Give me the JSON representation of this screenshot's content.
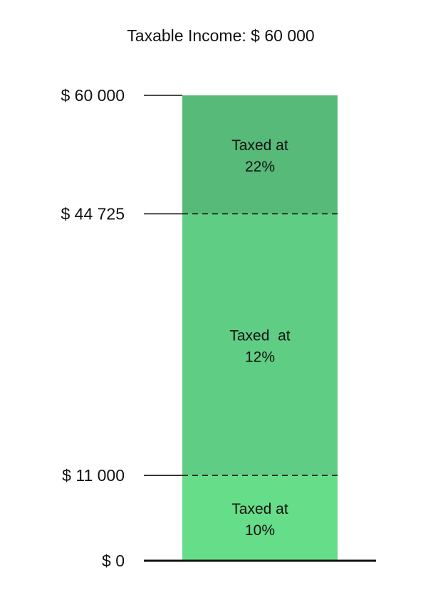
{
  "title": "Taxable Income: $ 60 000",
  "chart_data": {
    "type": "bar",
    "title": "Taxable Income: $ 60 000",
    "segments": [
      {
        "from": 0,
        "to": 11000,
        "label_line1": "Taxed at",
        "label_line2": "10%",
        "color": "#66dd88"
      },
      {
        "from": 11000,
        "to": 44725,
        "label_line1": "Taxed  at",
        "label_line2": "12%",
        "color": "#5fce84"
      },
      {
        "from": 44725,
        "to": 60000,
        "label_line1": "Taxed at",
        "label_line2": "22%",
        "color": "#57ba78"
      }
    ],
    "ticks": [
      {
        "value": 60000,
        "label": "$ 60 000"
      },
      {
        "value": 44725,
        "label": "$ 44 725"
      },
      {
        "value": 11000,
        "label": "$ 11 000"
      },
      {
        "value": 0,
        "label": "$ 0"
      }
    ],
    "ylim": [
      0,
      60000
    ]
  }
}
